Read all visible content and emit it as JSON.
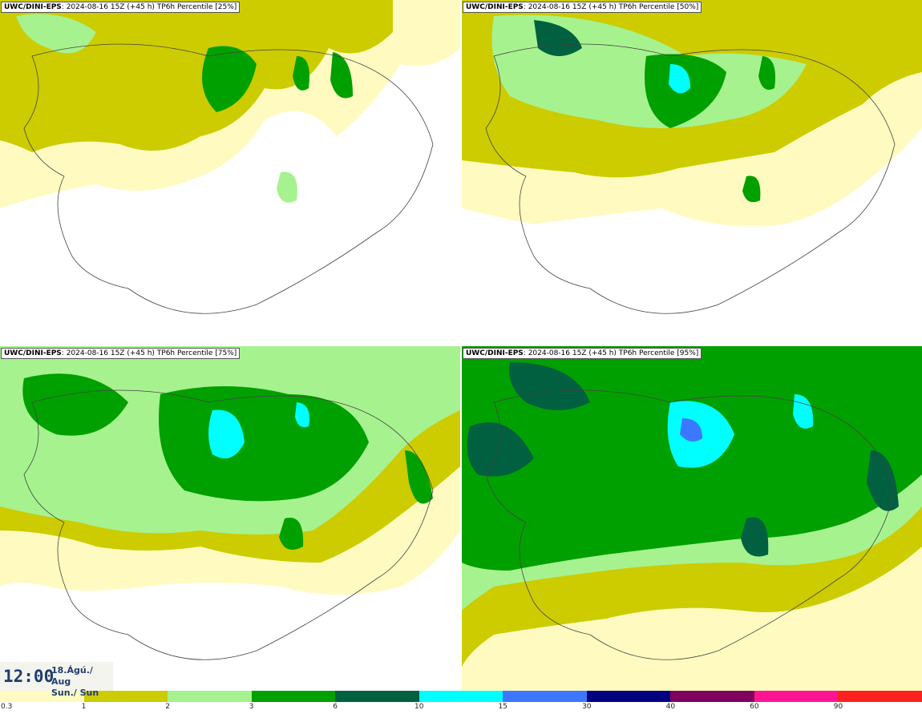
{
  "panels": [
    {
      "source": "UWC/DINI-EPS",
      "info": ": 2024-08-16 15Z (+45 h) TP6h Percentile [25%]"
    },
    {
      "source": "UWC/DINI-EPS",
      "info": ": 2024-08-16 15Z (+45 h) TP6h Percentile [50%]"
    },
    {
      "source": "UWC/DINI-EPS",
      "info": ": 2024-08-16 15Z (+45 h) TP6h Percentile [75%]"
    },
    {
      "source": "UWC/DINI-EPS",
      "info": ": 2024-08-16 15Z (+45 h) TP6h Percentile [95%]"
    }
  ],
  "valid_time": {
    "time": "12:00",
    "date_line1": "18.Ágú./ Aug",
    "date_line2": "Sun./ Sun"
  },
  "legend": {
    "bins": [
      {
        "color": "#fffbc0"
      },
      {
        "color": "#cccc00"
      },
      {
        "color": "#a6f28f"
      },
      {
        "color": "#00a000"
      },
      {
        "color": "#006040"
      },
      {
        "color": "#00ffff"
      },
      {
        "color": "#3c78ff"
      },
      {
        "color": "#000080"
      },
      {
        "color": "#800060"
      },
      {
        "color": "#ff1493"
      },
      {
        "color": "#ff2020"
      }
    ],
    "ticks": [
      "0.3",
      "1",
      "2",
      "3",
      "6",
      "10",
      "15",
      "30",
      "40",
      "60",
      "90"
    ]
  }
}
